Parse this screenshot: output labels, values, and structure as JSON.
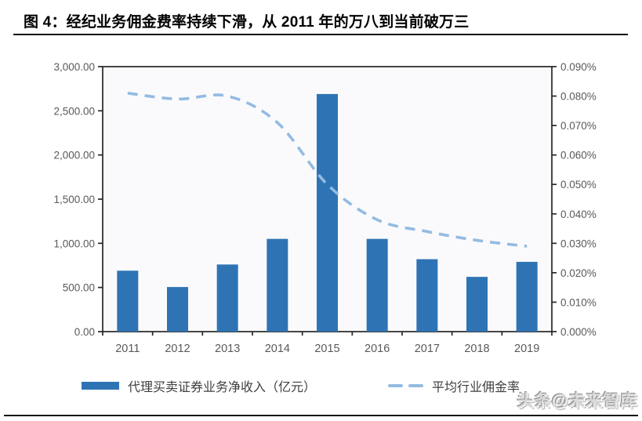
{
  "figure": {
    "title": "图 4：经纪业务佣金费率持续下滑，从 2011 年的万八到当前破万三"
  },
  "watermark": "头条@未来智库",
  "colors": {
    "bar": "#2E74B5",
    "line": "#94BBE2",
    "axis_line": "#262626",
    "axis_text": "#595959",
    "plot_bg": "#FAFAFC",
    "title_text": "#000000"
  },
  "legend": {
    "items": [
      {
        "label": "代理买卖证券业务净收入（亿元）",
        "swatch": "bar"
      },
      {
        "label": "平均行业佣金率",
        "swatch": "dashed-line"
      }
    ]
  },
  "chart_data": {
    "type": "bar",
    "subtype": "combo-bar-line-dual-axis",
    "categories": [
      "2011",
      "2012",
      "2013",
      "2014",
      "2015",
      "2016",
      "2017",
      "2018",
      "2019"
    ],
    "series": [
      {
        "name": "代理买卖证券业务净收入（亿元）",
        "type": "bar",
        "axis": "left",
        "values": [
          690,
          505,
          760,
          1050,
          2690,
          1050,
          820,
          620,
          790
        ]
      },
      {
        "name": "平均行业佣金率",
        "type": "line",
        "style": "smooth-dashed",
        "axis": "right",
        "unit": "%",
        "values": [
          0.081,
          0.079,
          0.08,
          0.071,
          0.05,
          0.038,
          0.034,
          0.031,
          0.029
        ]
      }
    ],
    "left_axis": {
      "min": 0,
      "max": 3000,
      "step": 500,
      "tick_labels": [
        "3,000.00",
        "2,500.00",
        "2,000.00",
        "1,500.00",
        "1,000.00",
        "500.00",
        "0.00"
      ]
    },
    "right_axis": {
      "min": 0,
      "max": 0.09,
      "step": 0.01,
      "tick_labels": [
        "0.090%",
        "0.080%",
        "0.070%",
        "0.060%",
        "0.050%",
        "0.040%",
        "0.030%",
        "0.020%",
        "0.010%",
        "0.000%"
      ]
    },
    "grid": "off",
    "legend_position": "bottom"
  }
}
